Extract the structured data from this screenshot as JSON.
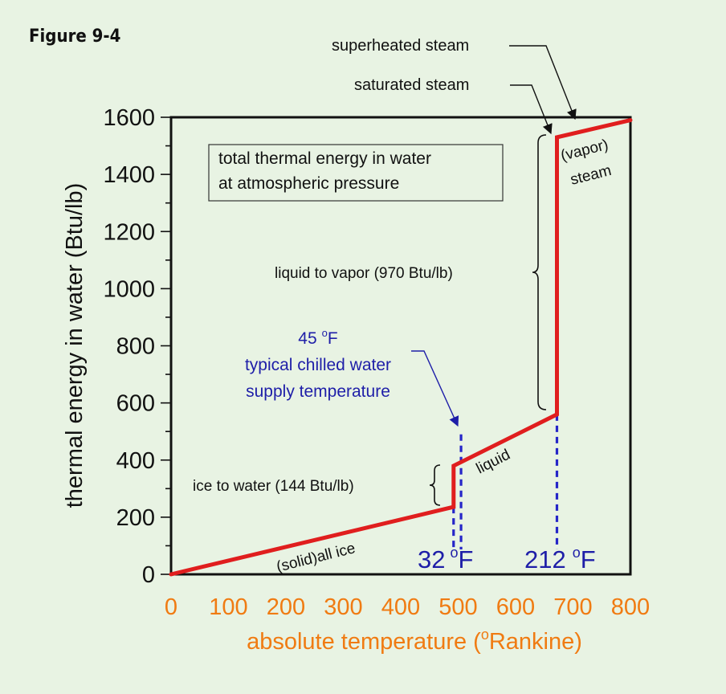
{
  "figure_label": "Figure 9-4",
  "colors": {
    "background": "#e8f3e3",
    "curve": "#e01e1e",
    "axis_x_text": "#f07b12",
    "annotation_blue": "#1e1ea8",
    "dashed_blue": "#2525c8",
    "text": "#111111"
  },
  "chart_data": {
    "type": "line",
    "title": "total thermal energy in water at atmospheric pressure",
    "title_lines": [
      "total thermal energy in water",
      "at atmospheric pressure"
    ],
    "xlabel": "absolute temperature (°Rankine)",
    "xlabel_main": "absolute temperature (",
    "xlabel_sup": "o",
    "xlabel_unit": "Rankine)",
    "ylabel": "thermal energy in water (Btu/lb)",
    "xlim": [
      0,
      800
    ],
    "ylim": [
      0,
      1600
    ],
    "x_ticks": [
      0,
      100,
      200,
      300,
      400,
      500,
      600,
      700,
      800
    ],
    "y_ticks": [
      0,
      200,
      400,
      600,
      800,
      1000,
      1200,
      1400,
      1600
    ],
    "x_tick_labels": [
      "0",
      "100",
      "200",
      "300",
      "400",
      "500",
      "600",
      "700",
      "800"
    ],
    "y_tick_labels": [
      "0",
      "200",
      "400",
      "600",
      "800",
      "1000",
      "1200",
      "1400",
      "1600"
    ],
    "grid": false,
    "series": [
      {
        "x": [
          0,
          492,
          492,
          672,
          672,
          800
        ],
        "y": [
          0,
          236,
          380,
          560,
          1530,
          1590
        ]
      }
    ],
    "markers": [
      {
        "x": 492,
        "y_top": 236,
        "label_value": "32",
        "label_unit": "F",
        "label_sup": "o"
      },
      {
        "x": 505,
        "y_top": 490,
        "label_value": "",
        "label_unit": "",
        "label_sup": ""
      },
      {
        "x": 672,
        "y_top": 560,
        "label_value": "212",
        "label_unit": "F",
        "label_sup": "o"
      }
    ],
    "annotations": {
      "solid_ice": "(solid)all ice",
      "liquid": "liquid",
      "vapor": "(vapor)",
      "steam": "steam",
      "ice_to_water": "ice to water (144 Btu/lb)",
      "liquid_to_vapor": "liquid to vapor (970 Btu/lb)",
      "saturated_steam": "saturated steam",
      "superheated_steam": "superheated steam",
      "chilled_title_value": "45",
      "chilled_title_sup": "o",
      "chilled_title_unit": "F",
      "chilled_line1": "typical chilled water",
      "chilled_line2": "supply temperature"
    }
  }
}
